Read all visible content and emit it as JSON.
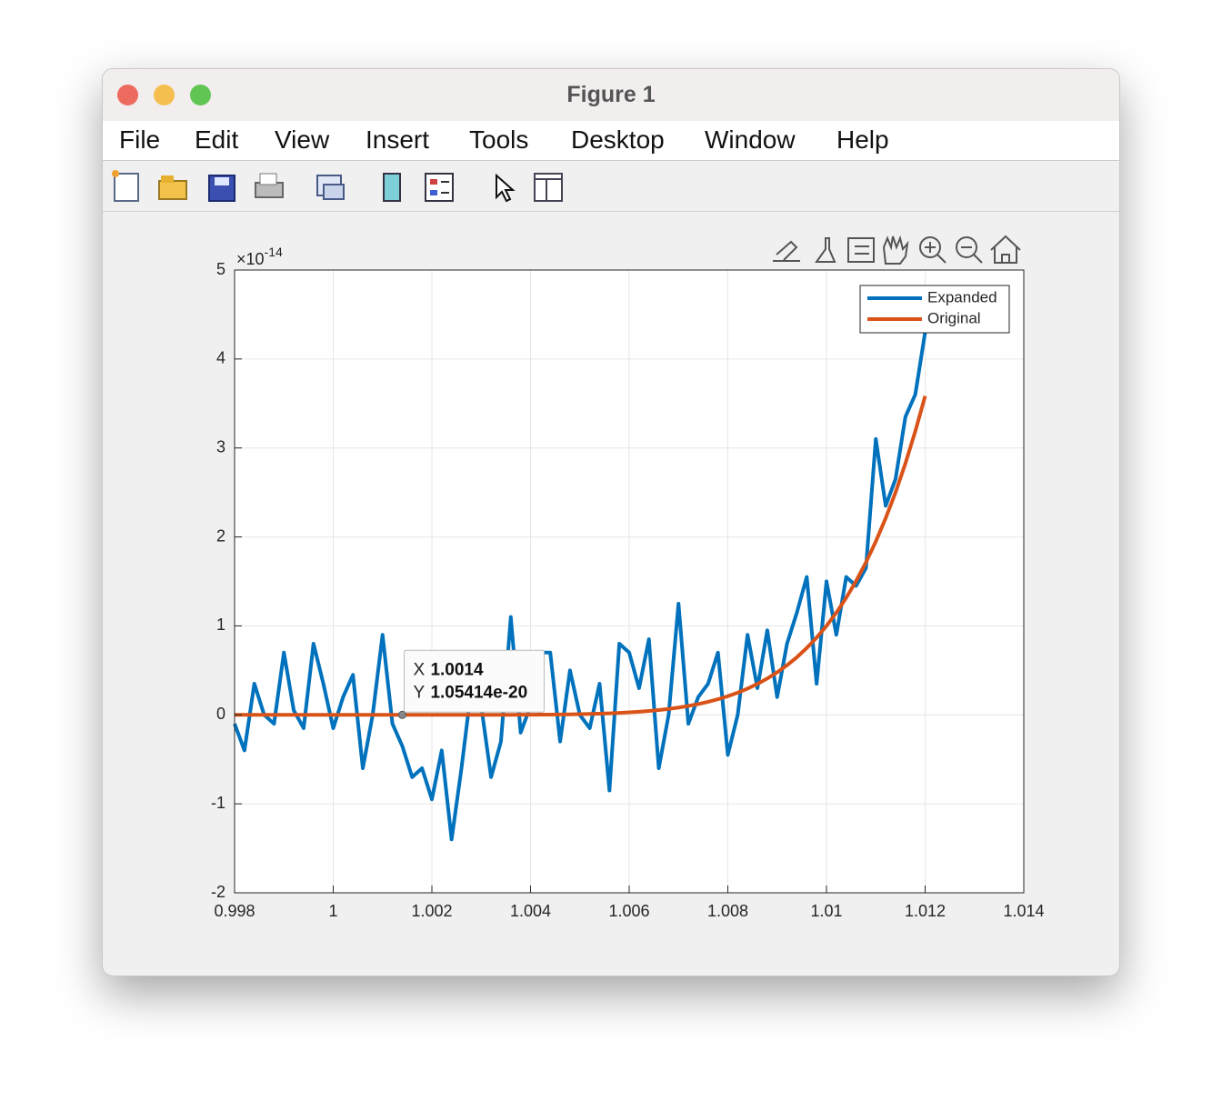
{
  "window": {
    "title": "Figure 1",
    "menu": [
      "File",
      "Edit",
      "View",
      "Insert",
      "Tools",
      "Desktop",
      "Window",
      "Help"
    ]
  },
  "chart_data": {
    "type": "line",
    "x": [
      0.998,
      0.9982,
      0.9984,
      0.9986,
      0.9988,
      0.999,
      0.9992,
      0.9994,
      0.9996,
      0.9998,
      1,
      1.0002,
      1.0004,
      1.0006,
      1.0008,
      1.001,
      1.0012,
      1.0014,
      1.0016,
      1.0018,
      1.002,
      1.0022,
      1.0024,
      1.0026,
      1.0028,
      1.003,
      1.0032,
      1.0034,
      1.0036,
      1.0038,
      1.004,
      1.0042,
      1.0044,
      1.0046,
      1.0048,
      1.005,
      1.0052,
      1.0054,
      1.0056,
      1.0058,
      1.006,
      1.0062,
      1.0064,
      1.0066,
      1.0068,
      1.007,
      1.0072,
      1.0074,
      1.0076,
      1.0078,
      1.008,
      1.0082,
      1.0084,
      1.0086,
      1.0088,
      1.009,
      1.0092,
      1.0094,
      1.0096,
      1.0098,
      1.01,
      1.0102,
      1.0104,
      1.0106,
      1.0108,
      1.011,
      1.0112,
      1.0114,
      1.0116,
      1.0118,
      1.012
    ],
    "series": [
      {
        "name": "Expanded",
        "color": "#0072bd",
        "values": [
          -0.1,
          -0.4,
          0.35,
          0,
          -0.1,
          0.7,
          0.05,
          -0.15,
          0.8,
          0.35,
          -0.15,
          0.2,
          0.45,
          -0.6,
          0,
          0.9,
          -0.1,
          -0.35,
          -0.7,
          -0.6,
          -0.95,
          -0.4,
          -1.4,
          -0.6,
          0.3,
          0.1,
          -0.7,
          -0.3,
          1.1,
          -0.2,
          0.1,
          0.7,
          0.7,
          -0.3,
          0.5,
          0,
          -0.15,
          0.35,
          -0.85,
          0.8,
          0.7,
          0.3,
          0.85,
          -0.6,
          0,
          1.25,
          -0.1,
          0.2,
          0.35,
          0.7,
          -0.45,
          0,
          0.9,
          0.3,
          0.95,
          0.2,
          0.8,
          1.15,
          1.55,
          0.35,
          1.5,
          0.9,
          1.55,
          1.45,
          1.65,
          3.1,
          2.35,
          2.65,
          3.35,
          3.6,
          4.3
        ]
      },
      {
        "name": "Original",
        "color": "#d95319",
        "values": [
          0,
          0,
          0,
          0,
          0,
          0,
          0,
          0,
          0,
          0,
          0,
          0,
          0,
          0,
          0,
          0,
          0,
          0,
          0,
          0,
          0,
          0,
          0,
          0,
          0,
          0.0002,
          0.0003,
          0.0005,
          0.0008,
          0.0011,
          0.0016,
          0.0023,
          0.0032,
          0.0044,
          0.0059,
          0.0078,
          0.0103,
          0.0134,
          0.0173,
          0.0221,
          0.028,
          0.0352,
          0.044,
          0.0545,
          0.0672,
          0.0824,
          0.1003,
          0.1215,
          0.1463,
          0.1754,
          0.2097,
          0.2493,
          0.2951,
          0.3479,
          0.4087,
          0.4783,
          0.558,
          0.6478,
          0.7514,
          0.8681,
          1,
          1.1488,
          1.316,
          1.5036,
          1.7138,
          1.9487,
          2.2107,
          2.5003,
          2.8265,
          3.1867,
          3.5832
        ]
      }
    ],
    "xlim": [
      0.998,
      1.014
    ],
    "xticks": [
      0.998,
      1,
      1.002,
      1.004,
      1.006,
      1.008,
      1.01,
      1.012,
      1.014
    ],
    "ylim": [
      -2,
      5
    ],
    "yticks": [
      -2,
      -1,
      0,
      1,
      2,
      3,
      4,
      5
    ],
    "y_multiplier": "×10",
    "y_exponent": "-14",
    "grid": true,
    "legend": "northeast",
    "datatip": {
      "x_label": "X",
      "x": 1.0014,
      "y_label": "Y",
      "y": 1.05414e-20
    }
  }
}
